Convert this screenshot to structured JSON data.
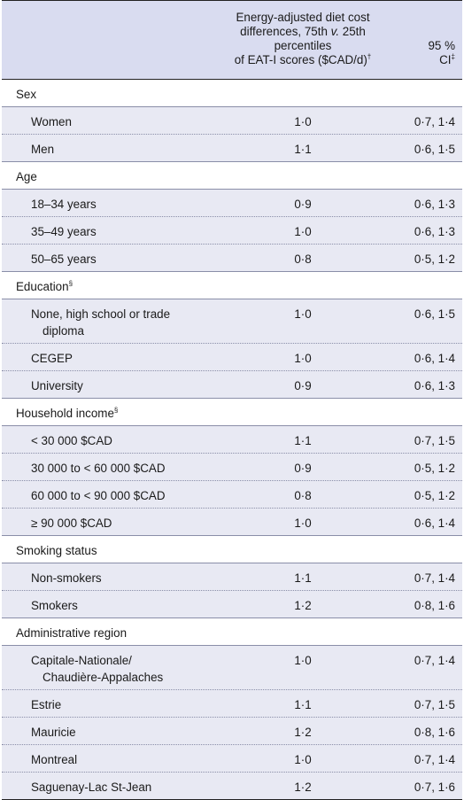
{
  "header": {
    "col2_line1": "Energy-adjusted diet cost",
    "col2_line2a": "differences, 75th ",
    "col2_line2_italic": "v.",
    "col2_line2b": " 25th",
    "col2_line3": "percentiles",
    "col2_line4": "of EAT-I scores ($CAD/d)",
    "col2_mark": "†",
    "col3_line1": "95 %",
    "col3_line2": "CI",
    "col3_mark": "‡"
  },
  "rows": [
    {
      "type": "section",
      "label": "Sex",
      "mark": ""
    },
    {
      "type": "item",
      "label": "Women",
      "value": "1·0",
      "ci": "0·7, 1·4"
    },
    {
      "type": "item",
      "label": "Men",
      "value": "1·1",
      "ci": "0·6, 1·5"
    },
    {
      "type": "section",
      "label": "Age",
      "mark": ""
    },
    {
      "type": "item",
      "label": "18–34 years",
      "value": "0·9",
      "ci": "0·6, 1·3"
    },
    {
      "type": "item",
      "label": "35–49 years",
      "value": "1·0",
      "ci": "0·6, 1·3"
    },
    {
      "type": "item",
      "label": "50–65 years",
      "value": "0·8",
      "ci": "0·5, 1·2"
    },
    {
      "type": "section",
      "label": "Education",
      "mark": "§"
    },
    {
      "type": "item",
      "label": "None, high school or trade",
      "label2": "diploma",
      "value": "1·0",
      "ci": "0·6, 1·5"
    },
    {
      "type": "item",
      "label": "CEGEP",
      "value": "1·0",
      "ci": "0·6, 1·4"
    },
    {
      "type": "item",
      "label": "University",
      "value": "0·9",
      "ci": "0·6, 1·3"
    },
    {
      "type": "section",
      "label": "Household income",
      "mark": "§"
    },
    {
      "type": "item",
      "label": "< 30 000 $CAD",
      "value": "1·1",
      "ci": "0·7, 1·5"
    },
    {
      "type": "item",
      "label": "30 000 to < 60 000 $CAD",
      "value": "0·9",
      "ci": "0·5, 1·2"
    },
    {
      "type": "item",
      "label": "60 000 to < 90 000 $CAD",
      "value": "0·8",
      "ci": "0·5, 1·2"
    },
    {
      "type": "item",
      "label": "≥ 90 000 $CAD",
      "value": "1·0",
      "ci": "0·6, 1·4"
    },
    {
      "type": "section",
      "label": "Smoking status",
      "mark": ""
    },
    {
      "type": "item",
      "label": "Non-smokers",
      "value": "1·1",
      "ci": "0·7, 1·4"
    },
    {
      "type": "item",
      "label": "Smokers",
      "value": "1·2",
      "ci": "0·8, 1·6"
    },
    {
      "type": "section",
      "label": "Administrative region",
      "mark": ""
    },
    {
      "type": "item",
      "label": "Capitale-Nationale/",
      "label2": "Chaudière-Appalaches",
      "value": "1·0",
      "ci": "0·7, 1·4"
    },
    {
      "type": "item",
      "label": "Estrie",
      "value": "1·1",
      "ci": "0·7, 1·5"
    },
    {
      "type": "item",
      "label": "Mauricie",
      "value": "1·2",
      "ci": "0·8, 1·6"
    },
    {
      "type": "item",
      "label": "Montreal",
      "value": "1·0",
      "ci": "0·7, 1·4"
    },
    {
      "type": "item",
      "label": "Saguenay-Lac St-Jean",
      "value": "1·2",
      "ci": "0·7, 1·6"
    }
  ]
}
